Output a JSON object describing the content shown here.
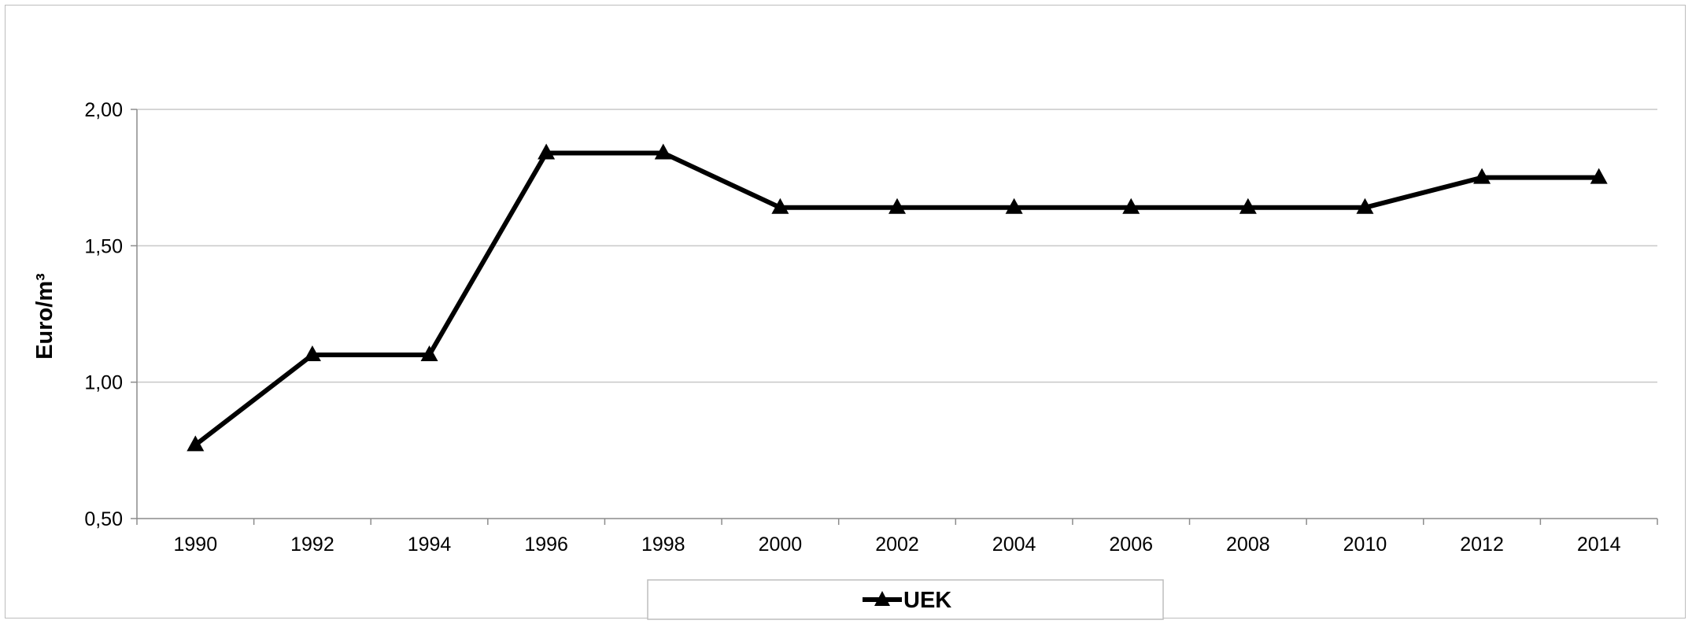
{
  "chart_data": {
    "type": "line",
    "title": "",
    "xlabel": "",
    "ylabel": "Euro/m³",
    "categories": [
      "1990",
      "1992",
      "1994",
      "1996",
      "1998",
      "2000",
      "2002",
      "2004",
      "2006",
      "2008",
      "2010",
      "2012",
      "2014"
    ],
    "series": [
      {
        "name": "UEK",
        "values": [
          0.77,
          1.1,
          1.1,
          1.84,
          1.84,
          1.64,
          1.64,
          1.64,
          1.64,
          1.64,
          1.64,
          1.75,
          1.75
        ],
        "color": "#000000",
        "marker": "triangle"
      }
    ],
    "ylim": [
      0.5,
      2.0
    ],
    "yticks": [
      "0,50",
      "1,00",
      "1,50",
      "2,00"
    ],
    "ytick_values": [
      0.5,
      1.0,
      1.5,
      2.0
    ],
    "grid": true,
    "legend_position": "bottom"
  }
}
